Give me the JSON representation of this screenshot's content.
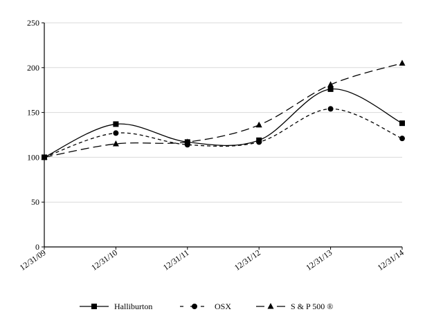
{
  "chart_data": {
    "type": "line",
    "title": "",
    "xlabel": "",
    "ylabel": "",
    "categories": [
      "12/31/09",
      "12/31/10",
      "12/31/11",
      "12/31/12",
      "12/31/13",
      "12/31/14"
    ],
    "ylim": [
      0,
      250
    ],
    "yticks": [
      0,
      50,
      100,
      150,
      200,
      250
    ],
    "grid": true,
    "legend_position": "bottom",
    "series": [
      {
        "name": "Halliburton",
        "values": [
          100,
          137,
          117,
          119,
          176,
          138
        ],
        "marker": "square",
        "dash": "solid",
        "color": "#000000"
      },
      {
        "name": "OSX",
        "values": [
          100,
          127,
          114,
          117,
          154,
          121
        ],
        "marker": "circle",
        "dash": "short",
        "color": "#000000"
      },
      {
        "name": "S & P 500 ®",
        "values": [
          100,
          115,
          117,
          136,
          181,
          205
        ],
        "marker": "triangle",
        "dash": "long",
        "color": "#000000"
      }
    ]
  }
}
